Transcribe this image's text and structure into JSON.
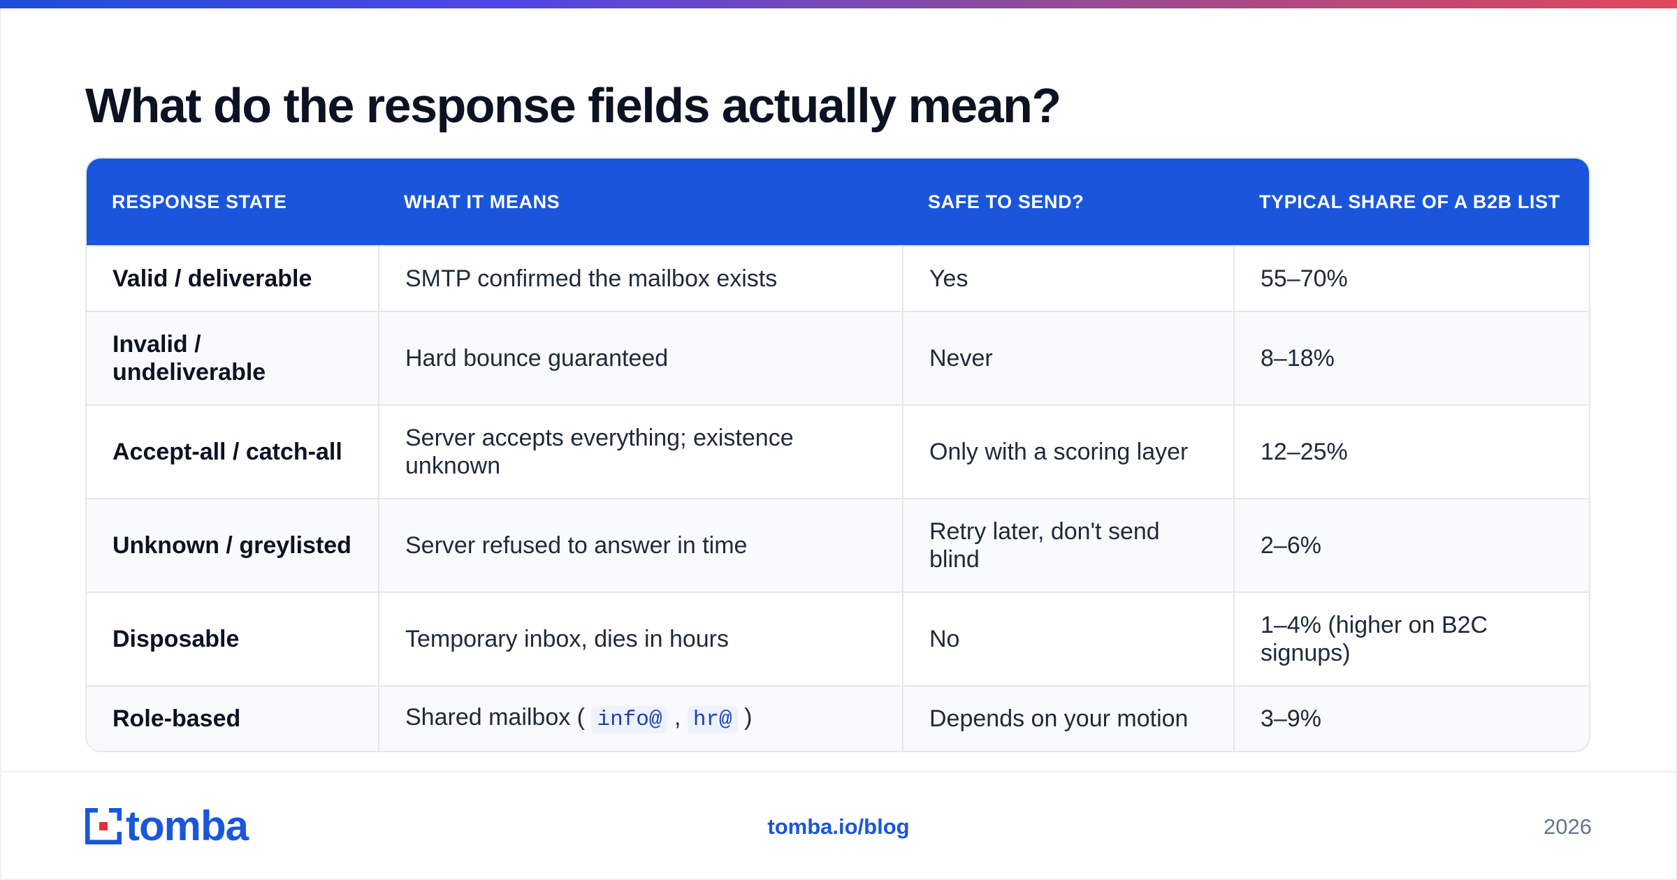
{
  "title": "What do the response fields actually mean?",
  "table": {
    "headers": [
      "Response state",
      "What it means",
      "Safe to send?",
      "Typical share of a B2B list"
    ],
    "rows": [
      {
        "state": "Valid / deliverable",
        "meaning": "SMTP confirmed the mailbox exists",
        "safe": "Yes",
        "share": "55–70%"
      },
      {
        "state": "Invalid / undeliverable",
        "meaning": "Hard bounce guaranteed",
        "safe": "Never",
        "share": "8–18%"
      },
      {
        "state": "Accept-all / catch-all",
        "meaning": "Server accepts everything; existence unknown",
        "safe": "Only with a scoring layer",
        "share": "12–25%"
      },
      {
        "state": "Unknown / greylisted",
        "meaning": "Server refused to answer in time",
        "safe": "Retry later, don't send blind",
        "share": "2–6%"
      },
      {
        "state": "Disposable",
        "meaning": "Temporary inbox, dies in hours",
        "safe": "No",
        "share": "1–4% (higher on B2C signups)"
      },
      {
        "state": "Role-based",
        "meaning_prefix": "Shared mailbox (",
        "meaning_code1": "info@",
        "meaning_sep": ",",
        "meaning_code2": "hr@",
        "meaning_suffix": ")",
        "safe": "Depends on your motion",
        "share": "3–9%"
      }
    ]
  },
  "footer": {
    "logo_text": "tomba",
    "link": "tomba.io/blog",
    "year": "2026"
  },
  "colors": {
    "accent": "#1a56db",
    "heading": "#0b1222",
    "muted": "#64748b"
  }
}
